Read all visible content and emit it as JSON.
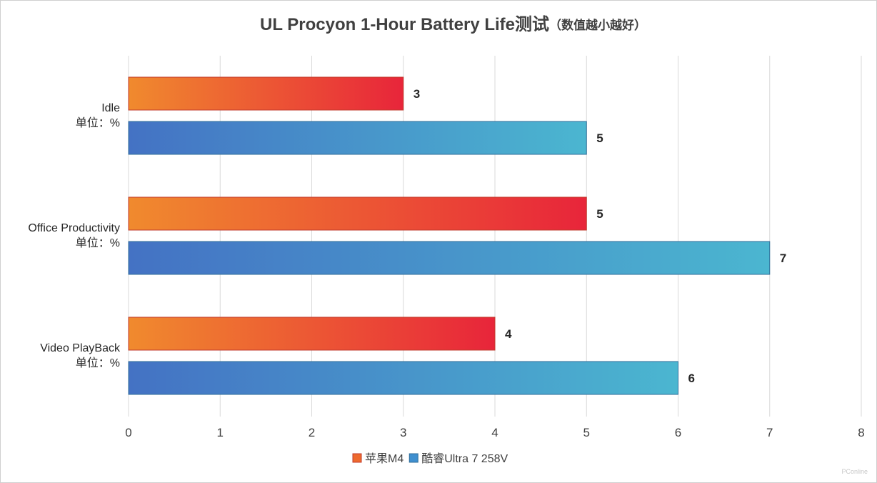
{
  "chart_data": {
    "type": "bar",
    "orientation": "horizontal",
    "title": "UL Procyon 1-Hour Battery Life测试",
    "subtitle": "（数值越小越好）",
    "categories": [
      {
        "name": "Idle",
        "unit": "单位：%"
      },
      {
        "name": "Office Productivity",
        "unit": "单位：%"
      },
      {
        "name": "Video PlayBack",
        "unit": "单位：%"
      }
    ],
    "series": [
      {
        "name": "苹果M4",
        "values": [
          3,
          5,
          4
        ],
        "color_start": "#F08A2E",
        "color_end": "#E8253A",
        "legend_color": "#EE6A2E"
      },
      {
        "name": "酷睿Ultra 7 258V",
        "values": [
          5,
          7,
          6
        ],
        "color_start": "#4472C4",
        "color_end": "#4BB6D0",
        "legend_color": "#3F8FCF"
      }
    ],
    "x_ticks": [
      "0",
      "1",
      "2",
      "3",
      "4",
      "5",
      "6",
      "7",
      "8"
    ],
    "xlim": [
      0,
      8
    ],
    "grid": true,
    "legend_position": "bottom",
    "watermark": "PConline"
  }
}
